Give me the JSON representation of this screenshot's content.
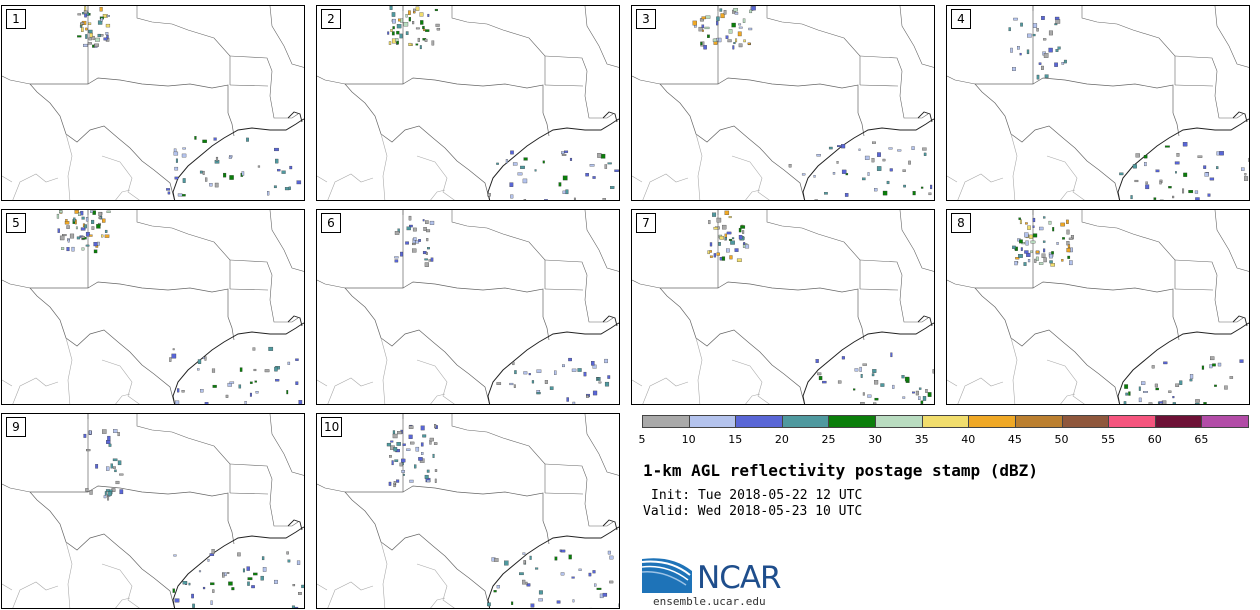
{
  "panels": [
    {
      "label": "1"
    },
    {
      "label": "2"
    },
    {
      "label": "3"
    },
    {
      "label": "4"
    },
    {
      "label": "5"
    },
    {
      "label": "6"
    },
    {
      "label": "7"
    },
    {
      "label": "8"
    },
    {
      "label": "9"
    },
    {
      "label": "10"
    }
  ],
  "colorbar": {
    "colors": [
      "#a9a9a9",
      "#b4c3ed",
      "#5966d6",
      "#4f999f",
      "#0b7e0b",
      "#b9dcc0",
      "#f1dd6d",
      "#efa826",
      "#bb7f2f",
      "#8f573c",
      "#f5557e",
      "#6d1136",
      "#b24ca7"
    ],
    "ticks": [
      "5",
      "10",
      "15",
      "20",
      "25",
      "30",
      "35",
      "40",
      "45",
      "50",
      "55",
      "60",
      "65"
    ]
  },
  "title": "1-km AGL reflectivity postage stamp (dBZ)",
  "init": "Init: Tue 2018-05-22 12 UTC",
  "valid": "Valid: Wed 2018-05-23 10 UTC",
  "logo": {
    "text": "NCAR",
    "url": "ensemble.ucar.edu"
  }
}
